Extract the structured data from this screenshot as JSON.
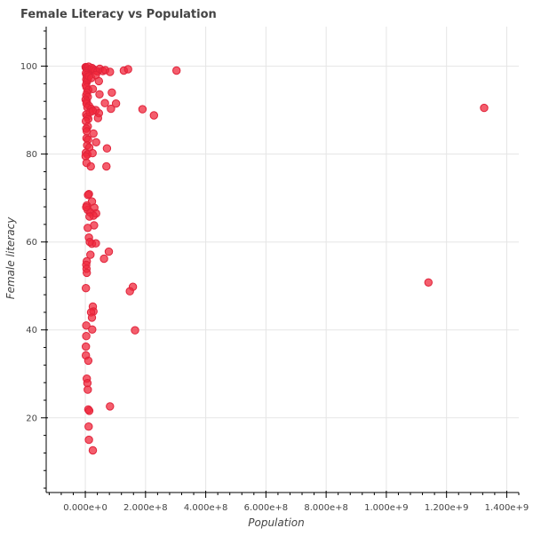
{
  "chart_data": {
    "type": "scatter",
    "title": "Female Literacy vs Population",
    "xlabel": "Population",
    "ylabel": "Female literacy",
    "xlim": [
      -130000000,
      1440000000
    ],
    "ylim": [
      3,
      109
    ],
    "x_ticks": [
      0,
      200000000,
      400000000,
      600000000,
      800000000,
      1000000000,
      1200000000,
      1400000000
    ],
    "x_tick_labels": [
      "0.000e+0",
      "2.000e+8",
      "4.000e+8",
      "6.000e+8",
      "8.000e+8",
      "1.000e+9",
      "1.200e+9",
      "1.400e+9"
    ],
    "y_ticks": [
      20,
      40,
      60,
      80,
      100
    ],
    "y_tick_labels": [
      "20",
      "40",
      "60",
      "80",
      "100"
    ],
    "grid": true,
    "legend": "none",
    "color": "#f0283c",
    "series": [
      {
        "points": [
          [
            1000000,
            99.8
          ],
          [
            2000000,
            99.7
          ],
          [
            3000000,
            99.6
          ],
          [
            5000000,
            99.5
          ],
          [
            7000000,
            99.3
          ],
          [
            9000000,
            99.1
          ],
          [
            11000000,
            99.9
          ],
          [
            14000000,
            99.2
          ],
          [
            18000000,
            99.0
          ],
          [
            22000000,
            99.6
          ],
          [
            27000000,
            99.3
          ],
          [
            33000000,
            99.0
          ],
          [
            40000000,
            98.8
          ],
          [
            48000000,
            99.4
          ],
          [
            58000000,
            98.9
          ],
          [
            66000000,
            99.1
          ],
          [
            82000000,
            98.7
          ],
          [
            128000000,
            99.0
          ],
          [
            142000000,
            99.3
          ],
          [
            303000000,
            99.0
          ],
          [
            2000000,
            98.4
          ],
          [
            4000000,
            98.0
          ],
          [
            6000000,
            97.6
          ],
          [
            3000000,
            97.0
          ],
          [
            5000000,
            96.4
          ],
          [
            8000000,
            96.9
          ],
          [
            12000000,
            97.7
          ],
          [
            20000000,
            97.3
          ],
          [
            35000000,
            98.0
          ],
          [
            45000000,
            96.6
          ],
          [
            2000000,
            95.7
          ],
          [
            4000000,
            95.2
          ],
          [
            10000000,
            94.6
          ],
          [
            6000000,
            94.0
          ],
          [
            3000000,
            93.4
          ],
          [
            8000000,
            93.0
          ],
          [
            25000000,
            94.8
          ],
          [
            47000000,
            93.6
          ],
          [
            88000000,
            94.0
          ],
          [
            1000000,
            92.4
          ],
          [
            5000000,
            92.0
          ],
          [
            4000000,
            91.5
          ],
          [
            12000000,
            91.0
          ],
          [
            7000000,
            90.6
          ],
          [
            20000000,
            90.3
          ],
          [
            35000000,
            90.0
          ],
          [
            45000000,
            89.3
          ],
          [
            42000000,
            88.2
          ],
          [
            65000000,
            91.6
          ],
          [
            85000000,
            90.3
          ],
          [
            102000000,
            91.5
          ],
          [
            190000000,
            90.2
          ],
          [
            228000000,
            88.8
          ],
          [
            1325000000,
            90.5
          ],
          [
            3000000,
            89.0
          ],
          [
            6000000,
            88.5
          ],
          [
            10000000,
            88.0
          ],
          [
            2000000,
            87.5
          ],
          [
            15000000,
            89.5
          ],
          [
            25000000,
            89.8
          ],
          [
            8000000,
            86.3
          ],
          [
            3000000,
            85.8
          ],
          [
            5000000,
            85.2
          ],
          [
            27000000,
            84.7
          ],
          [
            4000000,
            83.6
          ],
          [
            9000000,
            83.3
          ],
          [
            36000000,
            82.7
          ],
          [
            6000000,
            82.0
          ],
          [
            13000000,
            81.5
          ],
          [
            2000000,
            80.3
          ],
          [
            7000000,
            79.9
          ],
          [
            24000000,
            80.2
          ],
          [
            72000000,
            81.3
          ],
          [
            1000000,
            79.5
          ],
          [
            4000000,
            78.0
          ],
          [
            18000000,
            77.2
          ],
          [
            70000000,
            77.2
          ],
          [
            12000000,
            70.9
          ],
          [
            9000000,
            70.7
          ],
          [
            22000000,
            69.2
          ],
          [
            5000000,
            68.3
          ],
          [
            30000000,
            67.8
          ],
          [
            8000000,
            67.3
          ],
          [
            17000000,
            66.7
          ],
          [
            36000000,
            66.5
          ],
          [
            27000000,
            66.0
          ],
          [
            14000000,
            65.8
          ],
          [
            3000000,
            67.9
          ],
          [
            29000000,
            63.8
          ],
          [
            8000000,
            63.2
          ],
          [
            12000000,
            61.0
          ],
          [
            22000000,
            59.6
          ],
          [
            35000000,
            59.7
          ],
          [
            15000000,
            60.0
          ],
          [
            78000000,
            57.8
          ],
          [
            17000000,
            57.1
          ],
          [
            62000000,
            56.2
          ],
          [
            5000000,
            55.6
          ],
          [
            3000000,
            54.8
          ],
          [
            4000000,
            53.9
          ],
          [
            5000000,
            53.0
          ],
          [
            158000000,
            49.8
          ],
          [
            2000000,
            49.5
          ],
          [
            148000000,
            48.8
          ],
          [
            1140000000,
            50.8
          ],
          [
            25000000,
            45.3
          ],
          [
            27000000,
            44.2
          ],
          [
            19000000,
            44.0
          ],
          [
            22000000,
            42.8
          ],
          [
            3000000,
            41.0
          ],
          [
            23000000,
            40.1
          ],
          [
            165000000,
            39.9
          ],
          [
            3000000,
            38.6
          ],
          [
            2000000,
            36.2
          ],
          [
            2000000,
            34.2
          ],
          [
            10000000,
            33.0
          ],
          [
            5000000,
            28.9
          ],
          [
            7000000,
            27.9
          ],
          [
            8000000,
            26.4
          ],
          [
            82000000,
            22.6
          ],
          [
            10000000,
            21.9
          ],
          [
            13000000,
            21.6
          ],
          [
            11000000,
            18.0
          ],
          [
            12000000,
            15.0
          ],
          [
            25000000,
            12.6
          ]
        ]
      }
    ]
  }
}
